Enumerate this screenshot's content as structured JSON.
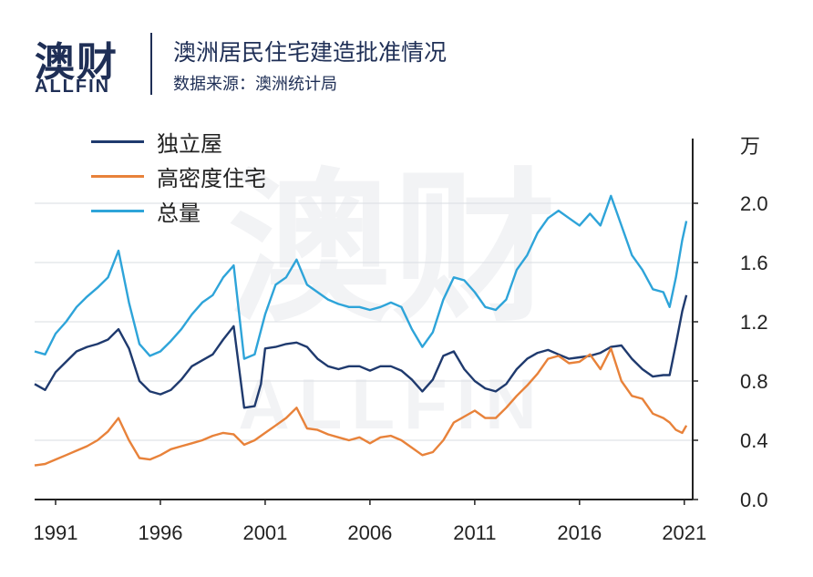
{
  "header": {
    "logo_cn": "澳财",
    "logo_en": "ALLFIN",
    "title": "澳洲居民住宅建造批准情况",
    "subtitle": "数据来源：澳洲统计局"
  },
  "colors": {
    "houses": "#1f3a6e",
    "high_density": "#e8823a",
    "total": "#2ea4d9",
    "axis": "#222222",
    "brand": "#1f2f56"
  },
  "chart_data": {
    "type": "line",
    "title": "澳洲居民住宅建造批准情况",
    "unit_label": "万",
    "xlim": [
      1990,
      2021.4
    ],
    "ylim": [
      0,
      2.4
    ],
    "x_ticks": [
      1991,
      1996,
      2001,
      2006,
      2011,
      2016,
      2021
    ],
    "y_ticks": [
      "0.0",
      "0.4",
      "0.8",
      "1.2",
      "1.6",
      "2.0"
    ],
    "y_tick_values": [
      0,
      0.4,
      0.8,
      1.2,
      1.6,
      2.0
    ],
    "legend_position": "top-left",
    "grid": "horizontal",
    "series": [
      {
        "name": "独立屋",
        "x": [
          1990.0,
          1990.5,
          1991.0,
          1991.5,
          1992.0,
          1992.5,
          1993.0,
          1993.5,
          1994.0,
          1994.5,
          1995.0,
          1995.5,
          1996.0,
          1996.5,
          1997.0,
          1997.5,
          1998.0,
          1998.5,
          1999.0,
          1999.5,
          2000.0,
          2000.5,
          2000.8,
          2001.0,
          2001.5,
          2002.0,
          2002.5,
          2003.0,
          2003.5,
          2004.0,
          2004.5,
          2005.0,
          2005.5,
          2006.0,
          2006.5,
          2007.0,
          2007.5,
          2008.0,
          2008.5,
          2009.0,
          2009.5,
          2010.0,
          2010.5,
          2011.0,
          2011.5,
          2012.0,
          2012.5,
          2013.0,
          2013.5,
          2014.0,
          2014.5,
          2015.0,
          2015.5,
          2016.0,
          2016.5,
          2017.0,
          2017.5,
          2018.0,
          2018.5,
          2019.0,
          2019.5,
          2020.0,
          2020.3,
          2020.6,
          2020.9,
          2021.1
        ],
        "values": [
          0.78,
          0.74,
          0.86,
          0.93,
          1.0,
          1.03,
          1.05,
          1.08,
          1.15,
          1.02,
          0.8,
          0.73,
          0.71,
          0.74,
          0.81,
          0.9,
          0.94,
          0.98,
          1.08,
          1.17,
          0.62,
          0.63,
          0.78,
          1.02,
          1.03,
          1.05,
          1.06,
          1.03,
          0.95,
          0.9,
          0.88,
          0.9,
          0.9,
          0.87,
          0.9,
          0.9,
          0.87,
          0.81,
          0.73,
          0.81,
          0.97,
          1.0,
          0.88,
          0.8,
          0.75,
          0.73,
          0.78,
          0.88,
          0.95,
          0.99,
          1.01,
          0.98,
          0.95,
          0.96,
          0.97,
          0.99,
          1.03,
          1.04,
          0.95,
          0.88,
          0.83,
          0.84,
          0.84,
          1.05,
          1.27,
          1.38
        ]
      },
      {
        "name": "高密度住宅",
        "x": [
          1990.0,
          1990.5,
          1991.0,
          1991.5,
          1992.0,
          1992.5,
          1993.0,
          1993.5,
          1994.0,
          1994.5,
          1995.0,
          1995.5,
          1996.0,
          1996.5,
          1997.0,
          1997.5,
          1998.0,
          1998.5,
          1999.0,
          1999.5,
          2000.0,
          2000.5,
          2001.0,
          2001.5,
          2002.0,
          2002.5,
          2003.0,
          2003.5,
          2004.0,
          2004.5,
          2005.0,
          2005.5,
          2006.0,
          2006.5,
          2007.0,
          2007.5,
          2008.0,
          2008.5,
          2009.0,
          2009.5,
          2010.0,
          2010.5,
          2011.0,
          2011.5,
          2012.0,
          2012.5,
          2013.0,
          2013.5,
          2014.0,
          2014.5,
          2015.0,
          2015.5,
          2016.0,
          2016.5,
          2017.0,
          2017.5,
          2018.0,
          2018.5,
          2019.0,
          2019.5,
          2020.0,
          2020.3,
          2020.6,
          2020.9,
          2021.1
        ],
        "values": [
          0.23,
          0.24,
          0.27,
          0.3,
          0.33,
          0.36,
          0.4,
          0.46,
          0.55,
          0.4,
          0.28,
          0.27,
          0.3,
          0.34,
          0.36,
          0.38,
          0.4,
          0.43,
          0.45,
          0.44,
          0.37,
          0.4,
          0.45,
          0.5,
          0.55,
          0.62,
          0.48,
          0.47,
          0.44,
          0.42,
          0.4,
          0.42,
          0.38,
          0.42,
          0.43,
          0.4,
          0.35,
          0.3,
          0.32,
          0.4,
          0.52,
          0.56,
          0.6,
          0.55,
          0.55,
          0.62,
          0.7,
          0.77,
          0.85,
          0.95,
          0.97,
          0.92,
          0.93,
          0.98,
          0.88,
          1.02,
          0.8,
          0.7,
          0.68,
          0.58,
          0.55,
          0.52,
          0.47,
          0.45,
          0.5
        ]
      },
      {
        "name": "总量",
        "x": [
          1990.0,
          1990.5,
          1991.0,
          1991.5,
          1992.0,
          1992.5,
          1993.0,
          1993.5,
          1994.0,
          1994.5,
          1995.0,
          1995.5,
          1996.0,
          1996.5,
          1997.0,
          1997.5,
          1998.0,
          1998.5,
          1999.0,
          1999.5,
          2000.0,
          2000.5,
          2001.0,
          2001.5,
          2002.0,
          2002.5,
          2003.0,
          2003.5,
          2004.0,
          2004.5,
          2005.0,
          2005.5,
          2006.0,
          2006.5,
          2007.0,
          2007.5,
          2008.0,
          2008.5,
          2009.0,
          2009.5,
          2010.0,
          2010.5,
          2011.0,
          2011.5,
          2012.0,
          2012.5,
          2013.0,
          2013.5,
          2014.0,
          2014.5,
          2015.0,
          2015.5,
          2016.0,
          2016.5,
          2017.0,
          2017.5,
          2018.0,
          2018.5,
          2019.0,
          2019.5,
          2020.0,
          2020.3,
          2020.6,
          2020.9,
          2021.1
        ],
        "values": [
          1.0,
          0.98,
          1.12,
          1.2,
          1.3,
          1.37,
          1.43,
          1.5,
          1.68,
          1.33,
          1.05,
          0.97,
          1.0,
          1.07,
          1.15,
          1.25,
          1.33,
          1.38,
          1.5,
          1.58,
          0.95,
          0.98,
          1.25,
          1.45,
          1.5,
          1.62,
          1.45,
          1.4,
          1.35,
          1.32,
          1.3,
          1.3,
          1.28,
          1.3,
          1.33,
          1.3,
          1.15,
          1.03,
          1.13,
          1.35,
          1.5,
          1.48,
          1.4,
          1.3,
          1.28,
          1.35,
          1.55,
          1.65,
          1.8,
          1.9,
          1.95,
          1.9,
          1.85,
          1.93,
          1.85,
          2.05,
          1.85,
          1.65,
          1.55,
          1.42,
          1.4,
          1.3,
          1.5,
          1.75,
          1.88
        ]
      }
    ]
  }
}
